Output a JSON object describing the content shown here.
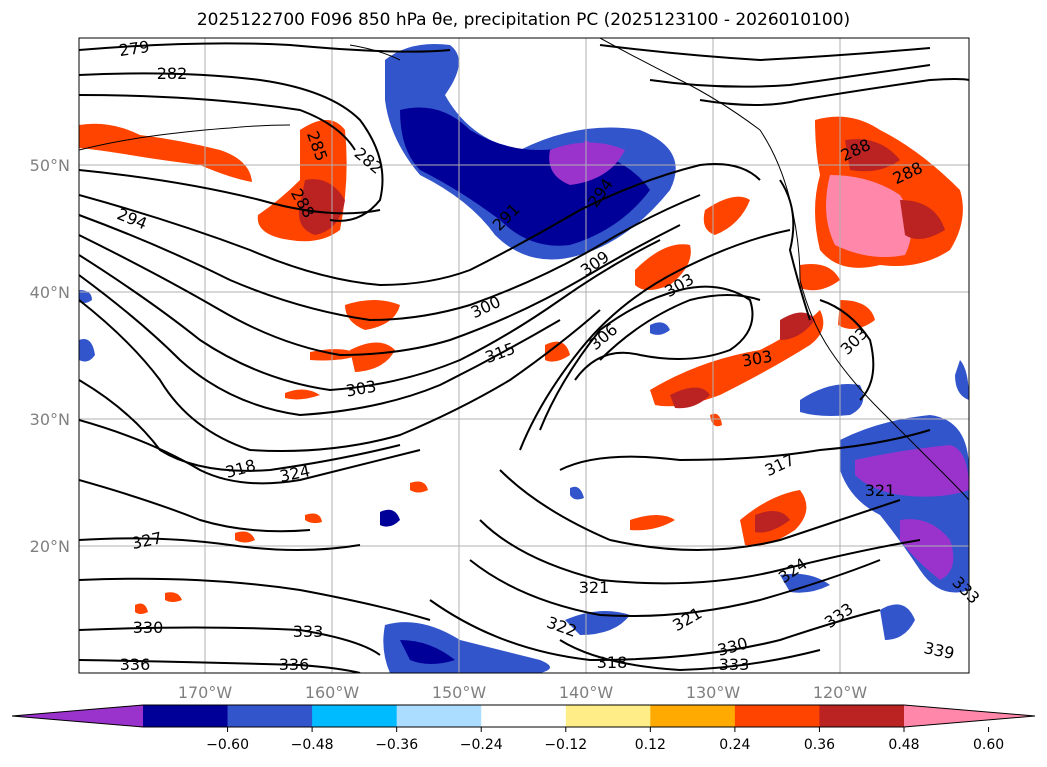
{
  "title": "2025122700 F096 850 hPa θe, precipitation PC (2025123100 - 2026010100)",
  "map": {
    "lat_labels": [
      "50°N",
      "40°N",
      "30°N",
      "20°N"
    ],
    "lon_labels": [
      "170°W",
      "160°W",
      "150°W",
      "140°W",
      "130°W",
      "120°W"
    ],
    "contour_labels": [
      "279",
      "282",
      "285",
      "288",
      "282",
      "294",
      "291",
      "294",
      "300",
      "309",
      "303",
      "315",
      "306",
      "303",
      "303",
      "318",
      "324",
      "317",
      "327",
      "321",
      "330",
      "333",
      "322",
      "321",
      "324",
      "333",
      "336",
      "336",
      "318",
      "330",
      "333",
      "339",
      "288",
      "288",
      "303",
      "321",
      "333"
    ]
  },
  "colorbar": {
    "colors": [
      "#9933cc",
      "#000099",
      "#3355cc",
      "#00bbff",
      "#aaddff",
      "#ffffff",
      "#ffee88",
      "#ffaa00",
      "#ff4400",
      "#bb2222",
      "#ff88aa"
    ],
    "ticks": [
      "−0.60",
      "−0.48",
      "−0.36",
      "−0.24",
      "−0.12",
      "0.12",
      "0.24",
      "0.36",
      "0.48",
      "0.60"
    ]
  },
  "chart_data": {
    "type": "heatmap",
    "title": "2025122700 F096 850 hPa θe, precipitation PC (2025123100 - 2026010100)",
    "latitudes": [
      "50°N",
      "40°N",
      "30°N",
      "20°N"
    ],
    "longitudes": [
      "170°W",
      "160°W",
      "150°W",
      "140°W",
      "130°W",
      "120°W"
    ],
    "colorbar_levels": [
      -0.6,
      -0.48,
      -0.36,
      -0.24,
      -0.12,
      0.12,
      0.24,
      0.36,
      0.48,
      0.6
    ],
    "contour_field": "850 hPa theta-e",
    "contour_values": [
      279,
      282,
      285,
      288,
      291,
      294,
      300,
      303,
      306,
      309,
      315,
      317,
      318,
      321,
      322,
      324,
      327,
      330,
      333,
      336,
      339
    ]
  }
}
